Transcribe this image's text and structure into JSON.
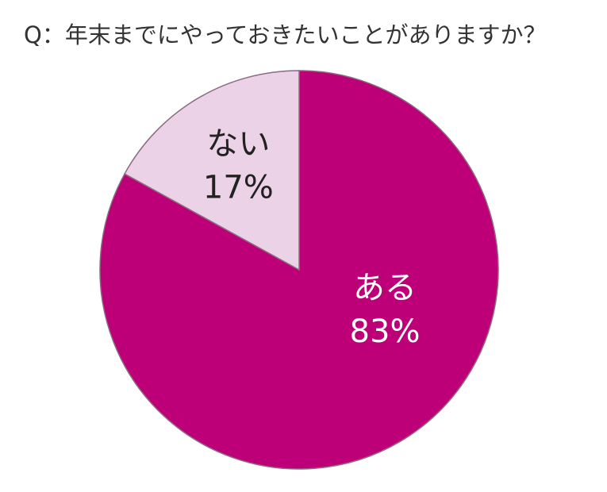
{
  "chart_data": {
    "type": "pie",
    "title": "Q：年末までにやっておきたいことがありますか？",
    "categories": [
      "ある",
      "ない"
    ],
    "values": [
      83,
      17
    ],
    "value_labels": [
      "83%",
      "17%"
    ],
    "colors": [
      "#be0078",
      "#ecd2e6"
    ]
  }
}
